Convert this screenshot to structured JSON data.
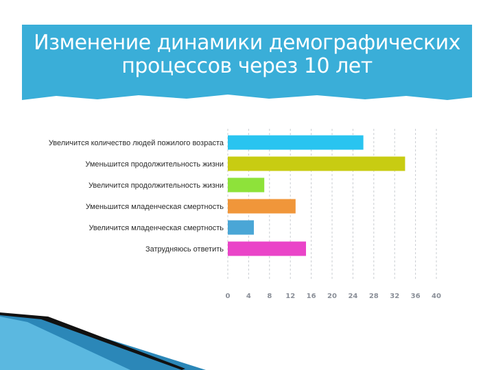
{
  "slide": {
    "title_line1": "Изменение динамики демографических",
    "title_line2": "процессов через 10 лет",
    "banner_color": "#3aaed8"
  },
  "chart_data": {
    "type": "bar",
    "orientation": "horizontal",
    "categories": [
      "Увеличится количество людей пожилого возраста",
      "Уменьшится продолжительность жизни",
      "Увеличится продолжительность жизни",
      "Уменьшится младенческая смертность",
      "Увеличится младенческая смертность",
      "Затрудняюсь ответить"
    ],
    "values": [
      26,
      34,
      7,
      13,
      5,
      15
    ],
    "colors": [
      "#29c4f0",
      "#c8cc12",
      "#8ee23a",
      "#f0963a",
      "#4aa6d6",
      "#ea44c8"
    ],
    "xticks": [
      0,
      4,
      8,
      12,
      16,
      20,
      24,
      28,
      32,
      36,
      40
    ],
    "xlim": [
      0,
      40
    ],
    "grid": true,
    "grid_style": "dashed-vertical",
    "legend": "none"
  }
}
